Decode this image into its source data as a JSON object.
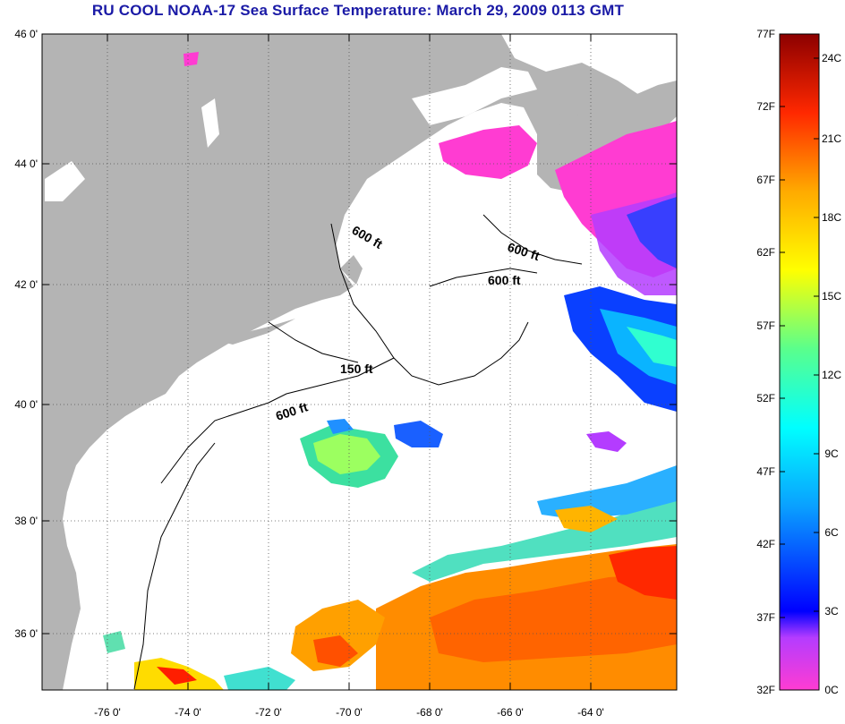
{
  "title": "RU COOL  NOAA-17  Sea Surface Temperature:  March 29, 2009 0113 GMT",
  "map": {
    "lat_ticks": [
      "46 0'",
      "44 0'",
      "42 0'",
      "40 0'",
      "38 0'",
      "36 0'"
    ],
    "lon_ticks": [
      "-76 0'",
      "-74 0'",
      "-72 0'",
      "-70 0'",
      "-68 0'",
      "-66 0'",
      "-64 0'"
    ],
    "contour_labels": [
      "600 ft",
      "600 ft",
      "600 ft",
      "150 ft",
      "600 ft"
    ],
    "land_color": "#b4b4b4",
    "cloud_color": "#ffffff"
  },
  "colorbar": {
    "fahrenheit_ticks": [
      "77F",
      "72F",
      "67F",
      "62F",
      "57F",
      "52F",
      "47F",
      "42F",
      "37F",
      "32F"
    ],
    "celsius_ticks": [
      "24C",
      "21C",
      "18C",
      "15C",
      "12C",
      "9C",
      "6C",
      "3C",
      "0C"
    ],
    "range_f": [
      32,
      77
    ],
    "range_c": [
      0,
      25
    ]
  }
}
